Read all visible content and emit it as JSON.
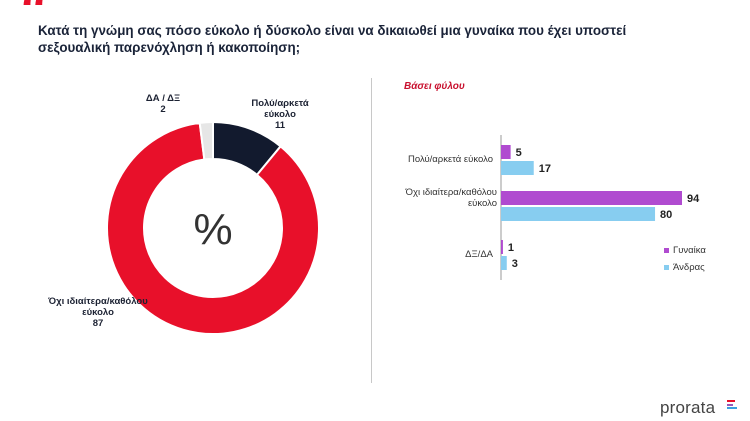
{
  "header": {
    "quote_icon": "quote-icon",
    "question": "Κατά τη γνώμη σας πόσο εύκολο ή δύσκολο είναι να δικαιωθεί μια γυναίκα που έχει υποστεί σεξουαλική παρενόχληση ή κακοποίηση;"
  },
  "colors": {
    "accent": "#e8102a",
    "navy": "#121a2e",
    "light_grey": "#e6e6e6",
    "women": "#b04bd0",
    "men": "#87cdf0"
  },
  "chart_data": [
    {
      "type": "pie",
      "variant": "donut",
      "center_label": "%",
      "slices": [
        {
          "label": "Πολύ/αρκετά εύκολο",
          "value": 11
        },
        {
          "label": "Όχι ιδιαίτερα/καθόλου εύκολο",
          "value": 87
        },
        {
          "label": "ΔΑ / ΔΞ",
          "value": 2
        }
      ]
    },
    {
      "type": "bar",
      "orientation": "horizontal",
      "subtitle": "Βάσει φύλου",
      "categories": [
        "Πολύ/αρκετά εύκολο",
        "Όχι ιδιαίτερα/καθόλου εύκολο",
        "ΔΞ/ΔΑ"
      ],
      "series": [
        {
          "name": "Γυναίκα",
          "values": [
            5,
            94,
            1
          ]
        },
        {
          "name": "Άνδρας",
          "values": [
            17,
            80,
            3
          ]
        }
      ],
      "legend": "right",
      "grid": false
    }
  ],
  "footer": {
    "logo_text": "prorata"
  }
}
